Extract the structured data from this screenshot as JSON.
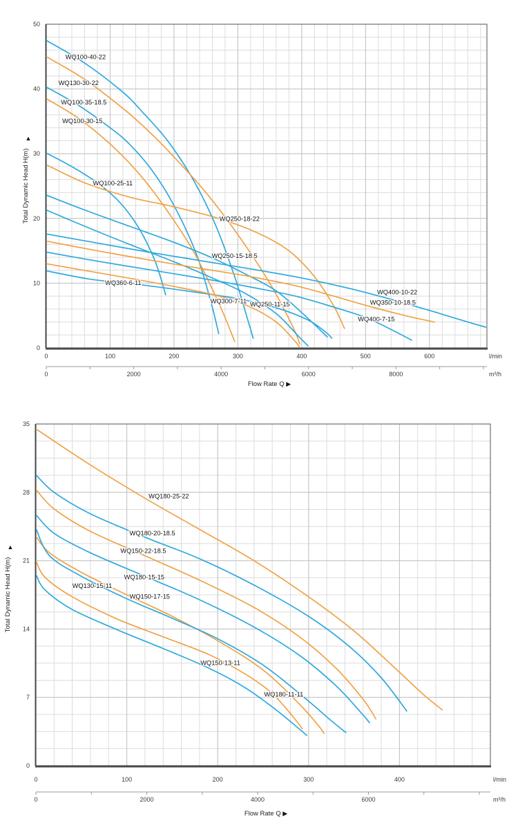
{
  "colors": {
    "blue": "#2EA9DE",
    "orange": "#F0A245",
    "grid_minor": "#dcdcdc",
    "grid_major": "#c3c3c3",
    "border": "#6e6e6e",
    "border_heavy": "#4a4a4a",
    "axis2_line": "#999999"
  },
  "chart_data": [
    {
      "type": "line",
      "title": "",
      "ylabel": "Total Dynamic Head H(m)",
      "y_arrow": "▲",
      "xlabel": "Flow Rate Q",
      "x_arrow": "▶",
      "y_axis": {
        "min": 0,
        "max": 50,
        "major": 10,
        "minor": 2,
        "ticks": [
          0,
          10,
          20,
          30,
          40,
          50
        ]
      },
      "x_axis": {
        "min": 0,
        "max": 690,
        "major": 100,
        "minor": 20,
        "ticks": [
          0,
          100,
          200,
          300,
          400,
          500,
          600
        ],
        "unit": "l/min"
      },
      "x_axis2": {
        "min": 0,
        "max": 10080,
        "tick_step": 1000,
        "labels": [
          0,
          2000,
          4000,
          6000,
          8000
        ],
        "unit": "m³/h"
      },
      "series": [
        {
          "name": "WQ100-40-22",
          "color": "blue",
          "label": [
            30,
            44.6
          ],
          "points": [
            [
              0,
              47.5
            ],
            [
              60,
              44
            ],
            [
              120,
              39.5
            ],
            [
              150,
              36.5
            ],
            [
              190,
              32
            ],
            [
              230,
              26
            ],
            [
              265,
              19
            ],
            [
              295,
              11
            ],
            [
              315,
              4.5
            ],
            [
              324,
              1.5
            ]
          ]
        },
        {
          "name": "WQ130-30-22",
          "color": "orange",
          "label": [
            19,
            40.6
          ],
          "points": [
            [
              0,
              45
            ],
            [
              60,
              41.5
            ],
            [
              120,
              37
            ],
            [
              160,
              33.5
            ],
            [
              200,
              29.5
            ],
            [
              250,
              24
            ],
            [
              300,
              17.5
            ],
            [
              350,
              10
            ],
            [
              385,
              3.5
            ],
            [
              397,
              0.6
            ]
          ]
        },
        {
          "name": "WQ100-35-18.5",
          "color": "blue",
          "label": [
            23,
            37.6
          ],
          "points": [
            [
              0,
              40.3
            ],
            [
              50,
              37.5
            ],
            [
              100,
              34
            ],
            [
              130,
              31.5
            ],
            [
              165,
              27.5
            ],
            [
              200,
              22
            ],
            [
              235,
              14.5
            ],
            [
              258,
              7
            ],
            [
              270,
              2.2
            ]
          ]
        },
        {
          "name": "WQ100-30-15",
          "color": "orange",
          "label": [
            25,
            34.7
          ],
          "points": [
            [
              0,
              38.5
            ],
            [
              50,
              35.5
            ],
            [
              100,
              31.5
            ],
            [
              140,
              27.5
            ],
            [
              180,
              22.5
            ],
            [
              230,
              15
            ],
            [
              272,
              6.5
            ],
            [
              295,
              1
            ]
          ]
        },
        {
          "name": "WQ100-25-11",
          "color": "blue",
          "label": [
            73,
            25.1
          ],
          "points": [
            [
              0,
              30.1
            ],
            [
              40,
              28
            ],
            [
              80,
              25.5
            ],
            [
              115,
              22.5
            ],
            [
              145,
              18.5
            ],
            [
              170,
              13.5
            ],
            [
              187,
              8.2
            ]
          ]
        },
        {
          "name": "WQ250-18-22",
          "color": "orange",
          "label": [
            271,
            19.6
          ],
          "points": [
            [
              0,
              28.3
            ],
            [
              60,
              25.5
            ],
            [
              130,
              23.3
            ],
            [
              200,
              21.8
            ],
            [
              270,
              20
            ],
            [
              330,
              17.8
            ],
            [
              380,
              15
            ],
            [
              420,
              11
            ],
            [
              450,
              6.5
            ],
            [
              467,
              3
            ]
          ]
        },
        {
          "name": "WQ250-15-18.5",
          "color": "blue",
          "label": [
            259,
            13.9
          ],
          "points": [
            [
              0,
              23.6
            ],
            [
              60,
              21.3
            ],
            [
              130,
              18.8
            ],
            [
              200,
              16.3
            ],
            [
              260,
              13.9
            ],
            [
              310,
              11.5
            ],
            [
              360,
              8.8
            ],
            [
              405,
              5
            ],
            [
              440,
              1.7
            ]
          ]
        },
        {
          "name": "WQ250-11-15",
          "color": "blue",
          "label": [
            319,
            6.4
          ],
          "points": [
            [
              0,
              21.3
            ],
            [
              60,
              18.8
            ],
            [
              130,
              16
            ],
            [
              200,
              13.3
            ],
            [
              260,
              10.8
            ],
            [
              310,
              8.5
            ],
            [
              360,
              5.3
            ],
            [
              395,
              1.8
            ],
            [
              410,
              0.3
            ]
          ]
        },
        {
          "name": "WQ360-6-11",
          "color": "blue",
          "label": [
            92,
            9.7
          ],
          "points": [
            [
              0,
              11.9
            ],
            [
              70,
              10.6
            ],
            [
              144,
              9.8
            ],
            [
              220,
              8.8
            ],
            [
              300,
              7.6
            ],
            [
              360,
              6.2
            ],
            [
              410,
              4.3
            ],
            [
              438,
              2.4
            ],
            [
              447,
              1.5
            ]
          ]
        },
        {
          "name": "WQ300-7-11",
          "color": "orange",
          "label": [
            257,
            6.9
          ],
          "points": [
            [
              0,
              13
            ],
            [
              70,
              11.8
            ],
            [
              140,
              10.6
            ],
            [
              210,
              9.3
            ],
            [
              270,
              8
            ],
            [
              320,
              6.3
            ],
            [
              360,
              4
            ],
            [
              388,
              1.2
            ],
            [
              396,
              0.2
            ]
          ]
        },
        {
          "name": "WQ400-10-22",
          "color": "blue",
          "label": [
            518,
            8.3
          ],
          "points": [
            [
              0,
              17.6
            ],
            [
              80,
              16.2
            ],
            [
              160,
              14.8
            ],
            [
              240,
              13.5
            ],
            [
              320,
              12.2
            ],
            [
              400,
              10.8
            ],
            [
              470,
              9.3
            ],
            [
              540,
              7.5
            ],
            [
              610,
              5.5
            ],
            [
              660,
              4
            ],
            [
              688,
              3.2
            ]
          ]
        },
        {
          "name": "WQ350-10-18.5",
          "color": "orange",
          "label": [
            507,
            6.7
          ],
          "points": [
            [
              0,
              16.5
            ],
            [
              80,
              15
            ],
            [
              160,
              13.6
            ],
            [
              240,
              12.3
            ],
            [
              320,
              11
            ],
            [
              390,
              9.6
            ],
            [
              450,
              8
            ],
            [
              510,
              6.3
            ],
            [
              570,
              4.8
            ],
            [
              608,
              4
            ]
          ]
        },
        {
          "name": "WQ400-7-15",
          "color": "blue",
          "label": [
            488,
            4.1
          ],
          "points": [
            [
              0,
              14.8
            ],
            [
              80,
              13.4
            ],
            [
              160,
              12.1
            ],
            [
              240,
              10.8
            ],
            [
              320,
              9.4
            ],
            [
              390,
              8
            ],
            [
              450,
              6.3
            ],
            [
              500,
              4.7
            ],
            [
              545,
              2.6
            ],
            [
              572,
              1.2
            ]
          ]
        }
      ]
    },
    {
      "type": "line",
      "title": "",
      "ylabel": "Total Dynamic Head H(m)",
      "y_arrow": "▲",
      "xlabel": "Flow Rate Q",
      "x_arrow": "▶",
      "y_axis": {
        "min": 0,
        "max": 35,
        "major": 7,
        "minor": 1.75,
        "ticks": [
          0,
          7,
          14,
          21,
          28,
          35
        ]
      },
      "x_axis": {
        "min": 0,
        "max": 500,
        "major": 100,
        "minor": 20,
        "ticks": [
          0,
          100,
          200,
          300,
          400
        ],
        "unit": "l/min"
      },
      "x_axis2": {
        "min": 0,
        "max": 8200,
        "tick_step": 1000,
        "labels": [
          0,
          2000,
          4000,
          6000
        ],
        "unit": "m³/h"
      },
      "series": [
        {
          "name": "WQ180-25-22",
          "color": "orange",
          "label": [
            124,
            27.4
          ],
          "points": [
            [
              0,
              34.5
            ],
            [
              60,
              30.8
            ],
            [
              120,
              27.4
            ],
            [
              180,
              24.2
            ],
            [
              240,
              21
            ],
            [
              300,
              17.3
            ],
            [
              350,
              13.8
            ],
            [
              395,
              10
            ],
            [
              425,
              7.4
            ],
            [
              447,
              5.7
            ]
          ]
        },
        {
          "name": "WQ180-20-18.5",
          "color": "blue",
          "label": [
            103,
            23.6
          ],
          "points": [
            [
              0,
              29.8
            ],
            [
              20,
              28
            ],
            [
              60,
              25.8
            ],
            [
              120,
              23.4
            ],
            [
              180,
              21.2
            ],
            [
              240,
              18.5
            ],
            [
              300,
              15.3
            ],
            [
              345,
              12.2
            ],
            [
              380,
              9
            ],
            [
              408,
              5.6
            ]
          ]
        },
        {
          "name": "WQ150-22-18.5",
          "color": "orange",
          "label": [
            93,
            21.8
          ],
          "points": [
            [
              0,
              28.3
            ],
            [
              20,
              26.3
            ],
            [
              60,
              24
            ],
            [
              120,
              21.5
            ],
            [
              180,
              19
            ],
            [
              240,
              16.2
            ],
            [
              290,
              13.2
            ],
            [
              330,
              10
            ],
            [
              360,
              6.8
            ],
            [
              374,
              4.8
            ]
          ]
        },
        {
          "name": "WQ180-15-15",
          "color": "blue",
          "label": [
            97,
            19.1
          ],
          "points": [
            [
              0,
              25.7
            ],
            [
              20,
              23.8
            ],
            [
              60,
              21.8
            ],
            [
              120,
              19.4
            ],
            [
              180,
              17
            ],
            [
              240,
              14.2
            ],
            [
              290,
              11.3
            ],
            [
              330,
              8.2
            ],
            [
              358,
              5.4
            ],
            [
              367,
              4.4
            ]
          ]
        },
        {
          "name": "WQ130-15-11",
          "color": "orange",
          "label": [
            40,
            18.2
          ],
          "points": [
            [
              0,
              23.5
            ],
            [
              15,
              21.8
            ],
            [
              50,
              19.8
            ],
            [
              100,
              17.5
            ],
            [
              150,
              15.3
            ],
            [
              200,
              12.8
            ],
            [
              250,
              9.8
            ],
            [
              290,
              6.3
            ],
            [
              310,
              4.2
            ],
            [
              317,
              3.3
            ]
          ]
        },
        {
          "name": "WQ150-17-15",
          "color": "blue",
          "label": [
            103,
            17.1
          ],
          "points": [
            [
              0,
              24.3
            ],
            [
              15,
              21.5
            ],
            [
              50,
              19.4
            ],
            [
              100,
              17.1
            ],
            [
              150,
              15.1
            ],
            [
              200,
              13
            ],
            [
              250,
              10.3
            ],
            [
              295,
              7
            ],
            [
              325,
              4.6
            ],
            [
              341,
              3.4
            ]
          ]
        },
        {
          "name": "WQ150-13-11",
          "color": "orange",
          "label": [
            181,
            10.3
          ],
          "points": [
            [
              0,
              21
            ],
            [
              10,
              19.3
            ],
            [
              40,
              17.3
            ],
            [
              90,
              15
            ],
            [
              140,
              13.2
            ],
            [
              190,
              11.4
            ],
            [
              230,
              9.4
            ],
            [
              260,
              7.4
            ],
            [
              283,
              5
            ],
            [
              293,
              3.8
            ]
          ]
        },
        {
          "name": "WQ180-11-11",
          "color": "blue",
          "label": [
            251,
            7.1
          ],
          "points": [
            [
              0,
              19.6
            ],
            [
              10,
              18
            ],
            [
              40,
              16
            ],
            [
              90,
              13.9
            ],
            [
              140,
              12
            ],
            [
              190,
              10
            ],
            [
              230,
              8
            ],
            [
              263,
              5.8
            ],
            [
              288,
              3.9
            ],
            [
              298,
              3.1
            ]
          ]
        }
      ]
    }
  ]
}
